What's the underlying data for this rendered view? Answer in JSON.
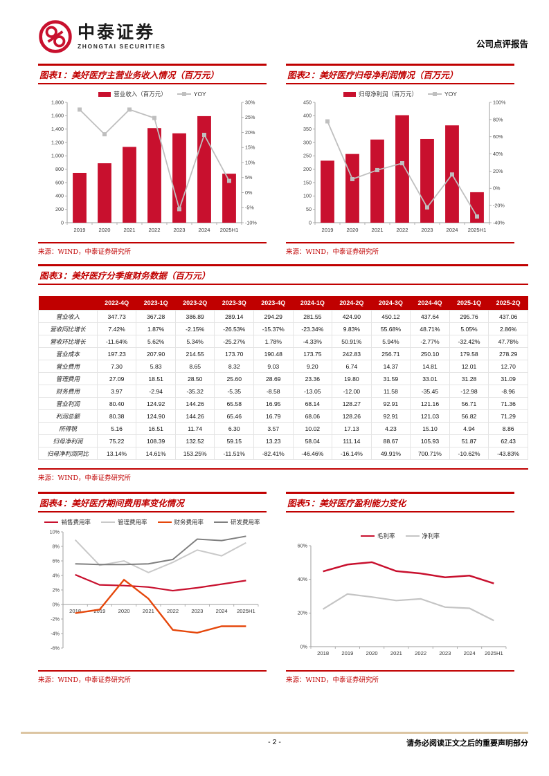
{
  "header": {
    "logo_cn": "中泰证券",
    "logo_en": "ZHONGTAI SECURITIES",
    "report_type": "公司点评报告"
  },
  "colors": {
    "brand_red": "#c8102e",
    "title_red": "#c00000",
    "table_header_bg": "#c00000",
    "yoy_gray": "#bfbfbf",
    "footer_tan": "#dcc5a2"
  },
  "figures": {
    "fig1": {
      "title": "图表1：美好医疗主营业务收入情况（百万元）",
      "source": "来源：WIND，中泰证券研究所"
    },
    "fig2": {
      "title": "图表2：美好医疗归母净利润情况（百万元）",
      "source": "来源：WIND，中泰证券研究所"
    },
    "fig3": {
      "title": "图表3：美好医疗分季度财务数据（百万元）",
      "source": "来源：WIND，中泰证券研究所"
    },
    "fig4": {
      "title": "图表4：美好医疗期间费用率变化情况",
      "source": "来源：WIND，中泰证券研究所"
    },
    "fig5": {
      "title": "图表5：美好医疗盈利能力变化",
      "source": "来源：WIND，中泰证券研究所"
    }
  },
  "table": {
    "columns": [
      "",
      "2022-4Q",
      "2023-1Q",
      "2023-2Q",
      "2023-3Q",
      "2023-4Q",
      "2024-1Q",
      "2024-2Q",
      "2024-3Q",
      "2024-4Q",
      "2025-1Q",
      "2025-2Q"
    ],
    "rows": [
      {
        "label": "营业收入",
        "values": [
          "347.73",
          "367.28",
          "386.89",
          "289.14",
          "294.29",
          "281.55",
          "424.90",
          "450.12",
          "437.64",
          "295.76",
          "437.06"
        ]
      },
      {
        "label": "营收同比增长",
        "values": [
          "7.42%",
          "1.87%",
          "-2.15%",
          "-26.53%",
          "-15.37%",
          "-23.34%",
          "9.83%",
          "55.68%",
          "48.71%",
          "5.05%",
          "2.86%"
        ]
      },
      {
        "label": "营收环比增长",
        "values": [
          "-11.64%",
          "5.62%",
          "5.34%",
          "-25.27%",
          "1.78%",
          "-4.33%",
          "50.91%",
          "5.94%",
          "-2.77%",
          "-32.42%",
          "47.78%"
        ]
      },
      {
        "label": "营业成本",
        "values": [
          "197.23",
          "207.90",
          "214.55",
          "173.70",
          "190.48",
          "173.75",
          "242.83",
          "256.71",
          "250.10",
          "179.58",
          "278.29"
        ]
      },
      {
        "label": "营业费用",
        "values": [
          "7.30",
          "5.83",
          "8.65",
          "8.32",
          "9.03",
          "9.20",
          "6.74",
          "14.37",
          "14.81",
          "12.01",
          "12.70"
        ]
      },
      {
        "label": "管理费用",
        "values": [
          "27.09",
          "18.51",
          "28.50",
          "25.60",
          "28.69",
          "23.36",
          "19.80",
          "31.59",
          "33.01",
          "31.28",
          "31.09"
        ]
      },
      {
        "label": "财务费用",
        "values": [
          "3.97",
          "-2.94",
          "-35.32",
          "-5.35",
          "-8.58",
          "-13.05",
          "-12.00",
          "11.58",
          "-35.45",
          "-12.98",
          "-8.96"
        ]
      },
      {
        "label": "营业利润",
        "values": [
          "80.40",
          "124.92",
          "144.26",
          "65.58",
          "16.95",
          "68.14",
          "128.27",
          "92.91",
          "121.16",
          "56.71",
          "71.36"
        ]
      },
      {
        "label": "利润总额",
        "values": [
          "80.38",
          "124.90",
          "144.26",
          "65.46",
          "16.79",
          "68.06",
          "128.26",
          "92.91",
          "121.03",
          "56.82",
          "71.29"
        ]
      },
      {
        "label": "所得税",
        "values": [
          "5.16",
          "16.51",
          "11.74",
          "6.30",
          "3.57",
          "10.02",
          "17.13",
          "4.23",
          "15.10",
          "4.94",
          "8.86"
        ]
      },
      {
        "label": "归母净利润",
        "values": [
          "75.22",
          "108.39",
          "132.52",
          "59.15",
          "13.23",
          "58.04",
          "111.14",
          "88.67",
          "105.93",
          "51.87",
          "62.43"
        ]
      },
      {
        "label": "归母净利润同比",
        "values": [
          "13.14%",
          "14.61%",
          "153.25%",
          "-11.51%",
          "-82.41%",
          "-46.46%",
          "-16.14%",
          "49.91%",
          "700.71%",
          "-10.62%",
          "-43.83%"
        ]
      }
    ]
  },
  "chart_data": [
    {
      "id": "fig1",
      "type": "bar+line",
      "title": "图表1：美好医疗主营业务收入情况（百万元）",
      "categories": [
        "2019",
        "2020",
        "2021",
        "2022",
        "2023",
        "2024",
        "2025H1"
      ],
      "bar": {
        "name": "营业收入（百万元）",
        "color": "#c8102e",
        "values": [
          745,
          889,
          1134,
          1415,
          1337,
          1594,
          733
        ]
      },
      "line": {
        "name": "YOY",
        "color": "#bfbfbf",
        "values": [
          27.6,
          19.4,
          27.6,
          24.8,
          -5.5,
          19.2,
          3.9
        ]
      },
      "ylim": [
        0,
        1800
      ],
      "ystep": 200,
      "y2lim": [
        -10,
        30
      ],
      "y2step": 5,
      "y2suffix": "%",
      "legend_position": "top",
      "grid": false
    },
    {
      "id": "fig2",
      "type": "bar+line",
      "title": "图表2：美好医疗归母净利润情况（百万元）",
      "categories": [
        "2019",
        "2020",
        "2021",
        "2022",
        "2023",
        "2024",
        "2025H1"
      ],
      "bar": {
        "name": "归母净利润（百万元）",
        "color": "#c8102e",
        "values": [
          232,
          257,
          311,
          402,
          313,
          364,
          114
        ]
      },
      "line": {
        "name": "YOY",
        "color": "#bfbfbf",
        "values": [
          77.9,
          10.7,
          21.2,
          29.2,
          -22.2,
          16.1,
          -32.8
        ]
      },
      "ylim": [
        0,
        450
      ],
      "ystep": 50,
      "y2lim": [
        -40,
        100
      ],
      "y2step": 20,
      "y2suffix": "%",
      "legend_position": "top",
      "grid": false
    },
    {
      "id": "fig4",
      "type": "line",
      "h": 192,
      "title": "图表4：美好医疗期间费用率变化情况",
      "categories": [
        "2018",
        "2019",
        "2020",
        "2021",
        "2022",
        "2023",
        "2024",
        "2025H1"
      ],
      "series": [
        {
          "name": "销售费用率",
          "color": "#c8102e",
          "w": 2.2,
          "values": [
            4.1,
            2.7,
            2.6,
            2.4,
            1.9,
            2.3,
            2.8,
            3.3
          ]
        },
        {
          "name": "管理费用率",
          "color": "#c9c9c9",
          "w": 2.0,
          "values": [
            8.9,
            5.4,
            6.0,
            4.4,
            5.8,
            7.5,
            6.7,
            8.5
          ]
        },
        {
          "name": "财务费用率",
          "color": "#e5470b",
          "w": 2.4,
          "values": [
            -1.2,
            -0.7,
            3.4,
            0.8,
            -3.5,
            -3.9,
            -3.0,
            -3.0
          ]
        },
        {
          "name": "研发费用率",
          "color": "#7f7f7f",
          "w": 2.0,
          "values": [
            5.6,
            5.5,
            5.5,
            5.6,
            6.2,
            9.0,
            8.8,
            9.4
          ]
        }
      ],
      "ylim": [
        -6,
        10
      ],
      "ystep": 2,
      "ysuffix": "%",
      "legend_position": "top",
      "grid": false
    },
    {
      "id": "fig5",
      "type": "line",
      "h": 170,
      "title": "图表5：美好医疗盈利能力变化",
      "categories": [
        "2018",
        "2019",
        "2020",
        "2021",
        "2022",
        "2023",
        "2024",
        "2025H1"
      ],
      "series": [
        {
          "name": "毛利率",
          "color": "#c8102e",
          "w": 2.5,
          "values": [
            44.7,
            48.8,
            50.2,
            44.9,
            43.5,
            41.2,
            42.2,
            37.6
          ]
        },
        {
          "name": "净利率",
          "color": "#c4c4c4",
          "w": 2.2,
          "values": [
            22.3,
            31.3,
            29.5,
            27.4,
            28.4,
            23.5,
            22.8,
            15.5
          ]
        }
      ],
      "ylim": [
        0,
        60
      ],
      "ystep": 20,
      "ysuffix": "%",
      "legend_position": "top",
      "grid": false
    }
  ],
  "footer": {
    "page_number": "- 2 -",
    "notice": "请务必阅读正文之后的重要声明部分"
  }
}
